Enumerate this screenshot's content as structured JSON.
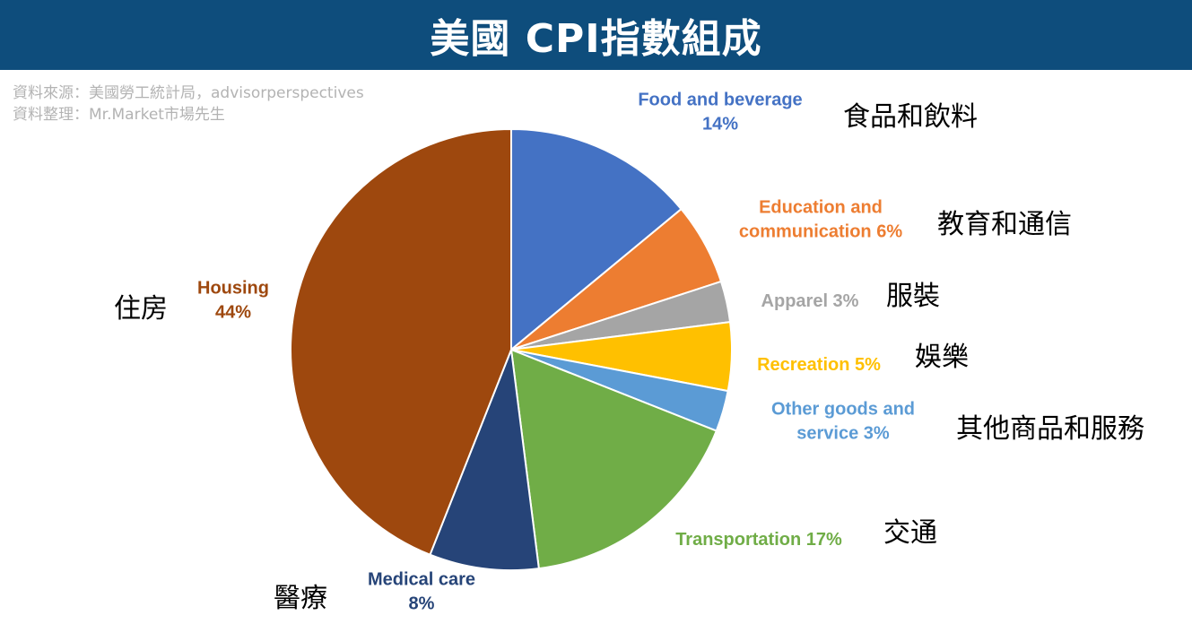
{
  "header": {
    "title": "美國 CPI指數組成"
  },
  "source": {
    "line1": "資料來源：美國勞工統計局，advisorperspectives",
    "line2": "資料整理：Mr.Market市場先生"
  },
  "chart_data": {
    "type": "pie",
    "title": "美國 CPI指數組成",
    "slices": [
      {
        "name": "Food and beverage",
        "label_lines": [
          "Food and beverage",
          "14%"
        ],
        "value": 14,
        "zh": "食品和飲料",
        "color": "#4472c4"
      },
      {
        "name": "Education and communication",
        "label_lines": [
          "Education and",
          "communication 6%"
        ],
        "value": 6,
        "zh": "教育和通信",
        "color": "#ed7d31"
      },
      {
        "name": "Apparel",
        "label_lines": [
          "Apparel 3%"
        ],
        "value": 3,
        "zh": "服裝",
        "color": "#a5a5a5"
      },
      {
        "name": "Recreation",
        "label_lines": [
          "Recreation 5%"
        ],
        "value": 5,
        "zh": "娛樂",
        "color": "#ffc000"
      },
      {
        "name": "Other goods and service",
        "label_lines": [
          "Other goods and",
          "service 3%"
        ],
        "value": 3,
        "zh": "其他商品和服務",
        "color": "#5b9bd5"
      },
      {
        "name": "Transportation",
        "label_lines": [
          "Transportation 17%"
        ],
        "value": 17,
        "zh": "交通",
        "color": "#70ad47"
      },
      {
        "name": "Medical care",
        "label_lines": [
          "Medical care",
          "8%"
        ],
        "value": 8,
        "zh": "醫療",
        "color": "#264478"
      },
      {
        "name": "Housing",
        "label_lines": [
          "Housing",
          "44%"
        ],
        "value": 44,
        "zh": "住房",
        "color": "#9e480e"
      }
    ],
    "label_colors": {
      "Food and beverage": "#4472c4",
      "Education and communication": "#ed7d31",
      "Apparel": "#a5a5a5",
      "Recreation": "#ffc000",
      "Other goods and service": "#5b9bd5",
      "Transportation": "#70ad47",
      "Medical care": "#264478",
      "Housing": "#9e480e"
    }
  }
}
